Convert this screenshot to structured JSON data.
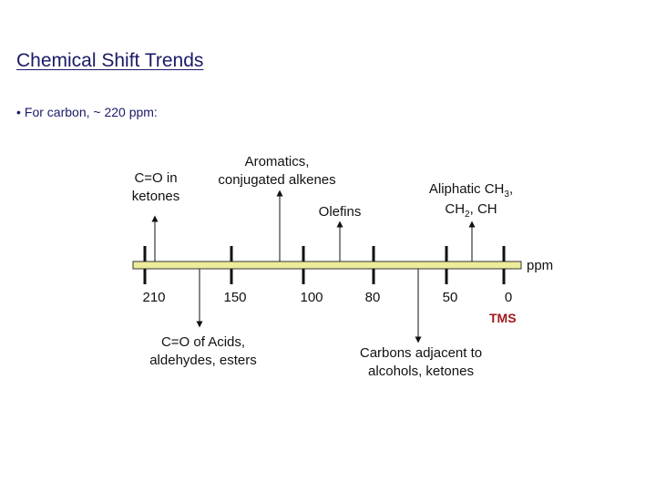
{
  "title": "Chemical Shift Trends",
  "bullet": "For carbon, ~ 220 ppm:",
  "axis": {
    "unit": "ppm",
    "ticks": [
      {
        "value": 210,
        "label": "210"
      },
      {
        "value": 150,
        "label": "150"
      },
      {
        "value": 100,
        "label": "100"
      },
      {
        "value": 80,
        "label": "80"
      },
      {
        "value": 50,
        "label": "50"
      },
      {
        "value": 0,
        "label": "0"
      }
    ],
    "reference": "TMS"
  },
  "annotations_above": {
    "ketones": {
      "line1": "C=O in",
      "line2": "ketones"
    },
    "aromatics": {
      "line1": "Aromatics,",
      "line2": "conjugated alkenes"
    },
    "olefins": "Olefins",
    "aliphatic": {
      "line1_main": "Aliphatic CH",
      "line1_sub": "3",
      "line1_end": ",",
      "line2_main": "CH",
      "line2_sub": "2",
      "line2_end": ", CH"
    }
  },
  "annotations_below": {
    "acids": {
      "line1": "C=O of Acids,",
      "line2": "aldehydes, esters"
    },
    "alcohols": {
      "line1": "Carbons adjacent to",
      "line2": "alcohols, ketones"
    }
  }
}
